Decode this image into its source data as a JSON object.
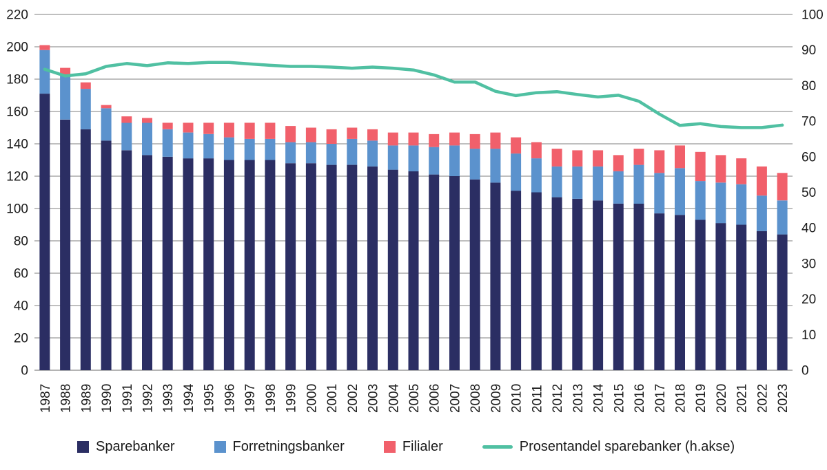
{
  "legend": {
    "items": [
      {
        "label": "Sparebanker",
        "color": "#2b2e63",
        "type": "square"
      },
      {
        "label": "Forretningsbanker",
        "color": "#5b92cd",
        "type": "square"
      },
      {
        "label": "Filialer",
        "color": "#f1606b",
        "type": "square"
      },
      {
        "label": "Prosentandel sparebanker (h.akse)",
        "color": "#50c0a2",
        "type": "line"
      }
    ]
  },
  "chart_data": {
    "type": "bar",
    "subtype": "stacked-bars-with-line",
    "title": "",
    "xlabel": "",
    "ylabel": "",
    "grid": true,
    "legend_position": "bottom",
    "categories": [
      "1987",
      "1988",
      "1989",
      "1990",
      "1991",
      "1992",
      "1993",
      "1994",
      "1995",
      "1996",
      "1997",
      "1998",
      "1999",
      "2000",
      "2001",
      "2002",
      "2003",
      "2004",
      "2005",
      "2006",
      "2007",
      "2008",
      "2009",
      "2010",
      "2011",
      "2012",
      "2013",
      "2014",
      "2015",
      "2016",
      "2017",
      "2018",
      "2019",
      "2020",
      "2021",
      "2022",
      "2023"
    ],
    "series": [
      {
        "name": "Sparebanker",
        "type": "bar",
        "stack": "banks",
        "axis": "left",
        "color": "#2b2e63",
        "values": [
          171,
          155,
          149,
          142,
          136,
          133,
          132,
          131,
          131,
          130,
          130,
          130,
          128,
          128,
          127,
          127,
          126,
          124,
          123,
          121,
          120,
          118,
          116,
          111,
          110,
          107,
          106,
          105,
          103,
          103,
          97,
          96,
          93,
          91,
          90,
          86,
          84
        ]
      },
      {
        "name": "Forretningsbanker",
        "type": "bar",
        "stack": "banks",
        "axis": "left",
        "color": "#5b92cd",
        "values": [
          27,
          28,
          25,
          20,
          17,
          20,
          17,
          16,
          15,
          14,
          13,
          13,
          13,
          13,
          13,
          16,
          16,
          15,
          16,
          17,
          19,
          19,
          21,
          23,
          21,
          19,
          20,
          21,
          20,
          24,
          25,
          29,
          24,
          25,
          25,
          22,
          21
        ]
      },
      {
        "name": "Filialer",
        "type": "bar",
        "stack": "banks",
        "axis": "left",
        "color": "#f1606b",
        "values": [
          3,
          4,
          4,
          2,
          4,
          3,
          4,
          6,
          7,
          9,
          10,
          10,
          10,
          9,
          9,
          7,
          7,
          8,
          8,
          8,
          8,
          9,
          10,
          10,
          10,
          11,
          10,
          10,
          10,
          10,
          14,
          14,
          18,
          17,
          16,
          18,
          17
        ]
      },
      {
        "name": "Prosentandel sparebanker (h.akse)",
        "type": "line",
        "axis": "right",
        "color": "#50c0a2",
        "values": [
          84.6,
          82.7,
          83.3,
          85.4,
          86.2,
          85.6,
          86.4,
          86.2,
          86.5,
          86.5,
          86.1,
          85.7,
          85.4,
          85.4,
          85.2,
          84.9,
          85.2,
          84.9,
          84.4,
          83.0,
          81.0,
          81.0,
          78.4,
          77.2,
          78.0,
          78.3,
          77.5,
          76.8,
          77.3,
          75.6,
          72.0,
          68.8,
          69.3,
          68.5,
          68.2,
          68.2,
          68.9
        ]
      }
    ],
    "left_axis": {
      "min": 0,
      "max": 220,
      "step": 20,
      "ticks": [
        "0",
        "20",
        "40",
        "60",
        "80",
        "100",
        "120",
        "140",
        "160",
        "180",
        "200",
        "220"
      ]
    },
    "right_axis": {
      "min": 0,
      "max": 100,
      "step": 10,
      "ticks": [
        "0",
        "10",
        "20",
        "30",
        "40",
        "50",
        "60",
        "70",
        "80",
        "90",
        "100"
      ]
    },
    "gridline_color": "#7f7f7f",
    "baseline_color": "#9b9b9b",
    "tick_label_color": "#1a1a1a"
  }
}
